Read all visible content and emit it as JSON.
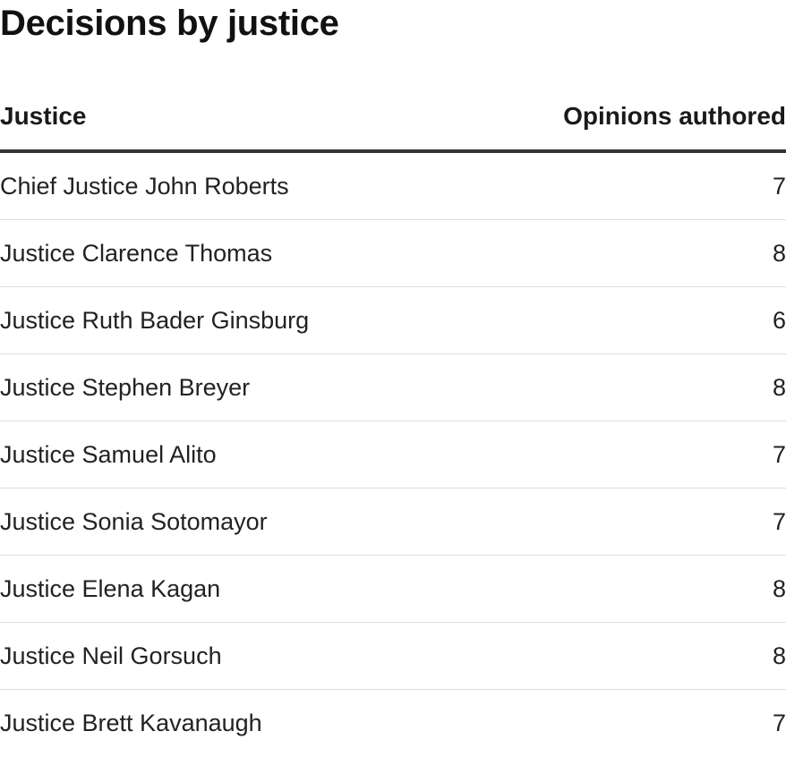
{
  "chart_data": {
    "type": "table",
    "title": "Decisions by justice",
    "columns": [
      "Justice",
      "Opinions authored"
    ],
    "rows": [
      {
        "name": "Chief Justice John Roberts",
        "value": 7
      },
      {
        "name": "Justice Clarence Thomas",
        "value": 8
      },
      {
        "name": "Justice Ruth Bader Ginsburg",
        "value": 6
      },
      {
        "name": "Justice Stephen Breyer",
        "value": 8
      },
      {
        "name": "Justice Samuel Alito",
        "value": 7
      },
      {
        "name": "Justice Sonia Sotomayor",
        "value": 7
      },
      {
        "name": "Justice Elena Kagan",
        "value": 8
      },
      {
        "name": "Justice Neil Gorsuch",
        "value": 8
      },
      {
        "name": "Justice Brett Kavanaugh",
        "value": 7
      }
    ]
  },
  "colors": {
    "text": "#222222",
    "header_rule": "#333333",
    "row_divider": "#dddddd"
  }
}
